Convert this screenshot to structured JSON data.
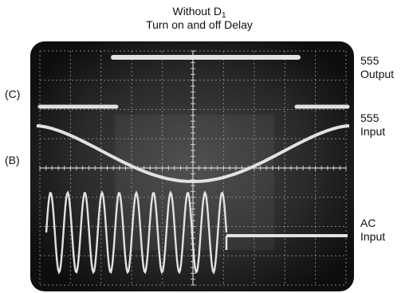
{
  "title": {
    "line1_main": "Without D",
    "line1_sub": "1",
    "line2": "Turn on and off Delay"
  },
  "left_labels": {
    "c": "(C)",
    "b": "(B)"
  },
  "right_labels": {
    "output": [
      "555",
      "Output"
    ],
    "input": [
      "555",
      "Input"
    ],
    "ac": [
      "AC",
      "Input"
    ]
  },
  "colors": {
    "screen": "#1a1a1a",
    "trace": "#e2e2e2",
    "grid": "#9a9a9a",
    "text": "#111111"
  }
}
